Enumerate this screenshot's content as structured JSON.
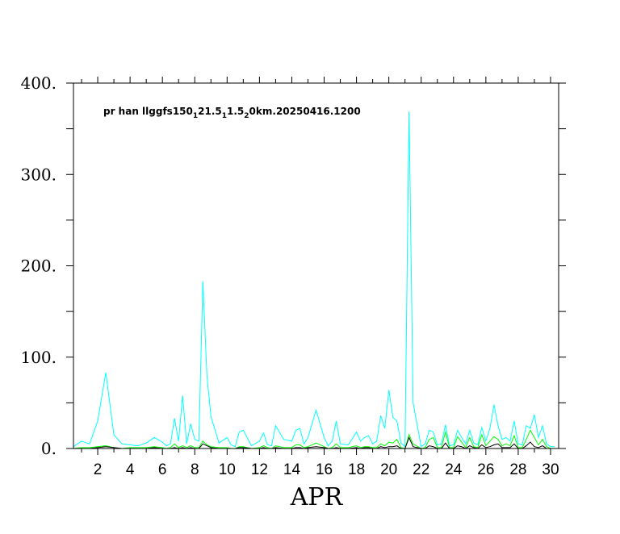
{
  "chart_data": {
    "type": "line",
    "title": "pr han llggfs150",
    "title_sub1": "1",
    "title_mid1": "21.5",
    "title_sub2": "1",
    "title_mid2": "1.5",
    "title_sub3": "2",
    "title_end": "0km.20250416.1200",
    "xlabel": "APR",
    "ylabel": "",
    "xlim": [
      0.5,
      30.5
    ],
    "ylim": [
      0,
      400
    ],
    "grid": false,
    "y_tick_labels": [
      "0.",
      "100.",
      "200.",
      "300.",
      "400."
    ],
    "y_tick_values": [
      0,
      100,
      200,
      300,
      400
    ],
    "x_tick_labels": [
      "2",
      "4",
      "6",
      "8",
      "10",
      "12",
      "14",
      "16",
      "18",
      "20",
      "22",
      "24",
      "26",
      "28",
      "30"
    ],
    "x_tick_values": [
      2,
      4,
      6,
      8,
      10,
      12,
      14,
      16,
      18,
      20,
      22,
      24,
      26,
      28,
      30
    ],
    "series": [
      {
        "color": "#00ffff",
        "x": [
          0.5,
          1.0,
          1.5,
          2.0,
          2.5,
          3.0,
          3.5,
          4.0,
          4.5,
          5.0,
          5.5,
          6.0,
          6.25,
          6.5,
          6.75,
          7.0,
          7.25,
          7.5,
          7.75,
          8.0,
          8.25,
          8.5,
          8.75,
          9.0,
          9.5,
          10.0,
          10.25,
          10.5,
          10.75,
          11.0,
          11.5,
          12.0,
          12.25,
          12.5,
          12.75,
          13.0,
          13.5,
          14.0,
          14.25,
          14.5,
          14.75,
          15.0,
          15.5,
          16.0,
          16.25,
          16.5,
          16.75,
          17.0,
          17.5,
          18.0,
          18.25,
          18.5,
          18.75,
          19.0,
          19.25,
          19.5,
          19.75,
          20.0,
          20.25,
          20.5,
          20.75,
          21.0,
          21.25,
          21.5,
          22.0,
          22.25,
          22.5,
          22.75,
          23.0,
          23.25,
          23.5,
          23.75,
          24.0,
          24.25,
          24.5,
          24.75,
          25.0,
          25.25,
          25.5,
          25.75,
          26.0,
          26.25,
          26.5,
          26.75,
          27.0,
          27.25,
          27.5,
          27.75,
          28.0,
          28.25,
          28.5,
          28.75,
          29.0,
          29.25,
          29.5,
          29.75,
          30.0,
          30.25
        ],
        "values": [
          2,
          8,
          5,
          30,
          83,
          15,
          5,
          4,
          3,
          6,
          12,
          7,
          3,
          5,
          33,
          8,
          58,
          5,
          27,
          10,
          8,
          183,
          80,
          35,
          6,
          12,
          4,
          2,
          18,
          20,
          3,
          8,
          17,
          4,
          3,
          25,
          10,
          8,
          20,
          22,
          5,
          12,
          42,
          12,
          3,
          8,
          30,
          5,
          4,
          18,
          8,
          12,
          14,
          5,
          8,
          36,
          22,
          64,
          34,
          30,
          6,
          2,
          369,
          50,
          2,
          5,
          20,
          18,
          4,
          5,
          26,
          3,
          4,
          20,
          12,
          5,
          20,
          6,
          4,
          23,
          8,
          22,
          48,
          25,
          10,
          12,
          8,
          30,
          5,
          4,
          25,
          22,
          37,
          12,
          25,
          5,
          2,
          2
        ]
      },
      {
        "color": "#00ff00",
        "x": [
          0.5,
          1.0,
          1.5,
          2.0,
          2.5,
          3.0,
          3.5,
          4.0,
          4.5,
          5.0,
          5.5,
          6.0,
          6.25,
          6.5,
          6.75,
          7.0,
          7.25,
          7.5,
          7.75,
          8.0,
          8.25,
          8.5,
          8.75,
          9.0,
          9.5,
          10.0,
          10.25,
          10.5,
          10.75,
          11.0,
          11.5,
          12.0,
          12.25,
          12.5,
          12.75,
          13.0,
          13.5,
          14.0,
          14.25,
          14.5,
          14.75,
          15.0,
          15.5,
          16.0,
          16.25,
          16.5,
          16.75,
          17.0,
          17.5,
          18.0,
          18.25,
          18.5,
          18.75,
          19.0,
          19.25,
          19.5,
          19.75,
          20.0,
          20.25,
          20.5,
          20.75,
          21.0,
          21.25,
          21.5,
          22.0,
          22.25,
          22.5,
          22.75,
          23.0,
          23.25,
          23.5,
          23.75,
          24.0,
          24.25,
          24.5,
          24.75,
          25.0,
          25.25,
          25.5,
          25.75,
          26.0,
          26.25,
          26.5,
          26.75,
          27.0,
          27.25,
          27.5,
          27.75,
          28.0,
          28.25,
          28.5,
          28.75,
          29.0,
          29.25,
          29.5,
          29.75,
          30.0,
          30.25
        ],
        "values": [
          0,
          1,
          1,
          2,
          3,
          1,
          0,
          1,
          1,
          1,
          2,
          1,
          0,
          1,
          5,
          1,
          3,
          1,
          3,
          1,
          1,
          8,
          4,
          2,
          1,
          1,
          0,
          0,
          2,
          2,
          0,
          1,
          3,
          1,
          0,
          3,
          1,
          1,
          4,
          4,
          1,
          2,
          6,
          2,
          0,
          1,
          5,
          1,
          1,
          3,
          1,
          2,
          2,
          1,
          1,
          5,
          3,
          7,
          6,
          10,
          1,
          0,
          15,
          5,
          0,
          1,
          10,
          12,
          1,
          1,
          18,
          1,
          1,
          13,
          7,
          1,
          12,
          2,
          1,
          15,
          3,
          8,
          13,
          10,
          3,
          5,
          3,
          14,
          1,
          1,
          10,
          20,
          12,
          4,
          10,
          2,
          0,
          0
        ]
      },
      {
        "color": "#000000",
        "x": [
          0.5,
          1.0,
          1.5,
          2.0,
          2.5,
          3.0,
          3.5,
          4.0,
          4.5,
          5.0,
          5.5,
          6.0,
          6.25,
          6.5,
          6.75,
          7.0,
          7.25,
          7.5,
          7.75,
          8.0,
          8.25,
          8.5,
          8.75,
          9.0,
          9.5,
          10.0,
          10.25,
          10.5,
          10.75,
          11.0,
          11.5,
          12.0,
          12.25,
          12.5,
          12.75,
          13.0,
          13.5,
          14.0,
          14.25,
          14.5,
          14.75,
          15.0,
          15.5,
          16.0,
          16.25,
          16.5,
          16.75,
          17.0,
          17.5,
          18.0,
          18.25,
          18.5,
          18.75,
          19.0,
          19.25,
          19.5,
          19.75,
          20.0,
          20.25,
          20.5,
          20.75,
          21.0,
          21.25,
          21.5,
          22.0,
          22.25,
          22.5,
          22.75,
          23.0,
          23.25,
          23.5,
          23.75,
          24.0,
          24.25,
          24.5,
          24.75,
          25.0,
          25.25,
          25.5,
          25.75,
          26.0,
          26.25,
          26.5,
          26.75,
          27.0,
          27.25,
          27.5,
          27.75,
          28.0,
          28.25,
          28.5,
          28.75,
          29.0,
          29.25,
          29.5,
          29.75,
          30.0,
          30.25
        ],
        "values": [
          0,
          0,
          0,
          1,
          2,
          1,
          0,
          0,
          0,
          0,
          1,
          0,
          0,
          0,
          1,
          0,
          1,
          0,
          1,
          0,
          0,
          5,
          3,
          1,
          0,
          0,
          0,
          0,
          1,
          1,
          0,
          0,
          1,
          0,
          0,
          1,
          0,
          0,
          1,
          1,
          0,
          1,
          2,
          1,
          0,
          0,
          1,
          0,
          0,
          1,
          0,
          1,
          1,
          0,
          0,
          2,
          1,
          2,
          2,
          3,
          0,
          0,
          12,
          2,
          0,
          0,
          3,
          2,
          0,
          0,
          6,
          0,
          0,
          3,
          2,
          0,
          3,
          1,
          0,
          4,
          1,
          2,
          4,
          5,
          1,
          1,
          1,
          5,
          0,
          0,
          3,
          7,
          2,
          1,
          3,
          0,
          0,
          0
        ]
      }
    ]
  }
}
